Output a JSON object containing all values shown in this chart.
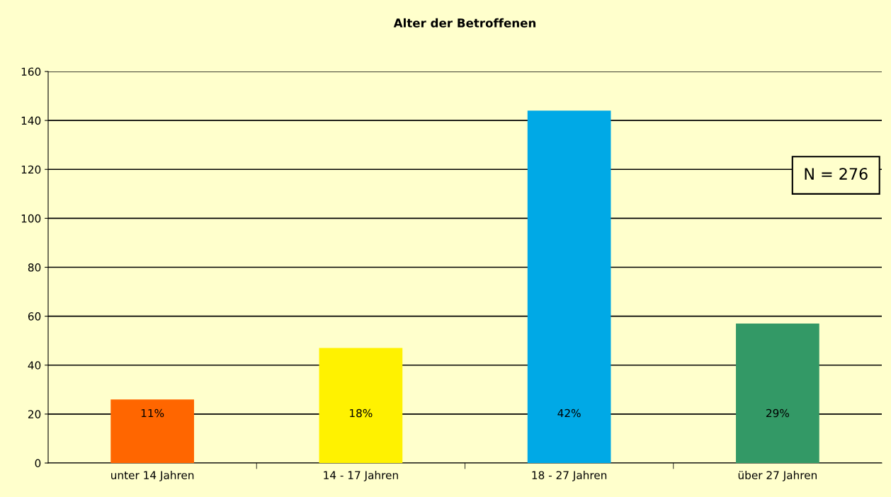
{
  "chart_data": {
    "type": "bar",
    "title": "Alter der Betroffenen",
    "categories": [
      "unter 14 Jahren",
      "14 - 17 Jahren",
      "18 - 27 Jahren",
      "über 27 Jahren"
    ],
    "values": [
      26,
      47,
      144,
      57
    ],
    "colors": [
      "#ff6600",
      "#fff200",
      "#00a9e6",
      "#339966"
    ],
    "ylim": [
      0,
      160
    ],
    "yticks": [
      0,
      20,
      40,
      60,
      80,
      100,
      120,
      140,
      160
    ],
    "grid": "y",
    "legend": false,
    "annotations": [
      "11%",
      "18%",
      "42%",
      "29%",
      "N = 276"
    ]
  }
}
